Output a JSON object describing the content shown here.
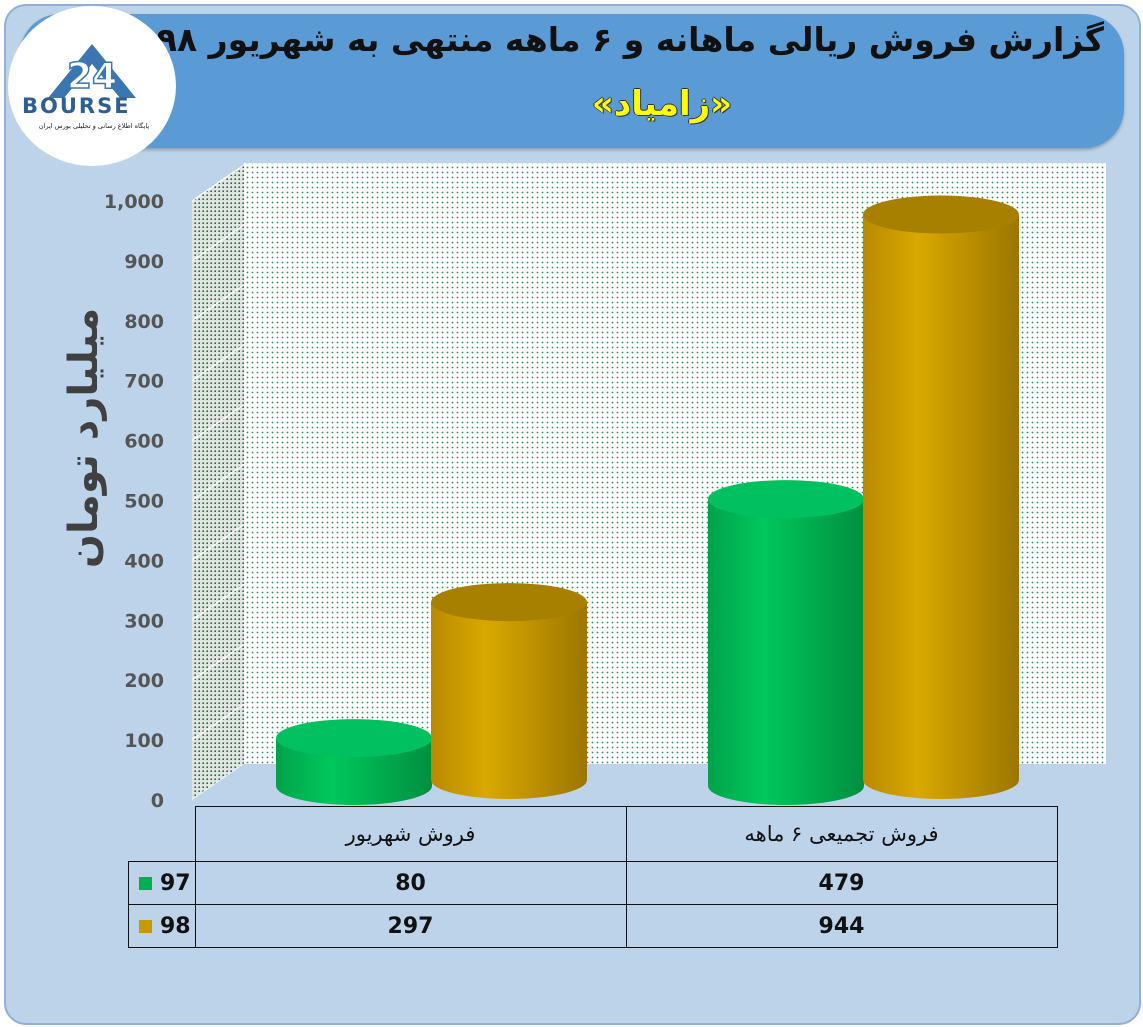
{
  "header": {
    "title": "گزارش فروش ریالی ماهانه و ۶ ماهه منتهی به شهریور ۹۸",
    "subtitle": "«زامیاد»"
  },
  "logo": {
    "number": "24",
    "brand": "BOURSE",
    "tagline": "پایگاه اطلاع رسانی و تحلیلی بورس ایران"
  },
  "colors": {
    "s97": "#00b050",
    "s98": "#c79a00"
  },
  "chart_data": {
    "type": "bar",
    "categories": [
      "فروش شهریور",
      "فروش تجمیعی ۶ ماهه"
    ],
    "series": [
      {
        "name": "97",
        "values": [
          80,
          479
        ]
      },
      {
        "name": "98",
        "values": [
          297,
          944
        ]
      }
    ],
    "ylabel": "میلیارد تومان",
    "ylim": [
      0,
      1000
    ],
    "yticks": [
      "0",
      "100",
      "200",
      "300",
      "400",
      "500",
      "600",
      "700",
      "800",
      "900",
      "1,000"
    ],
    "grid": true,
    "legend": "table-bottom"
  },
  "table": {
    "categories": [
      "فروش شهریور",
      "فروش تجمیعی ۶ ماهه"
    ],
    "rows": [
      {
        "name": "97",
        "cells": [
          "80",
          "479"
        ]
      },
      {
        "name": "98",
        "cells": [
          "297",
          "944"
        ]
      }
    ]
  }
}
